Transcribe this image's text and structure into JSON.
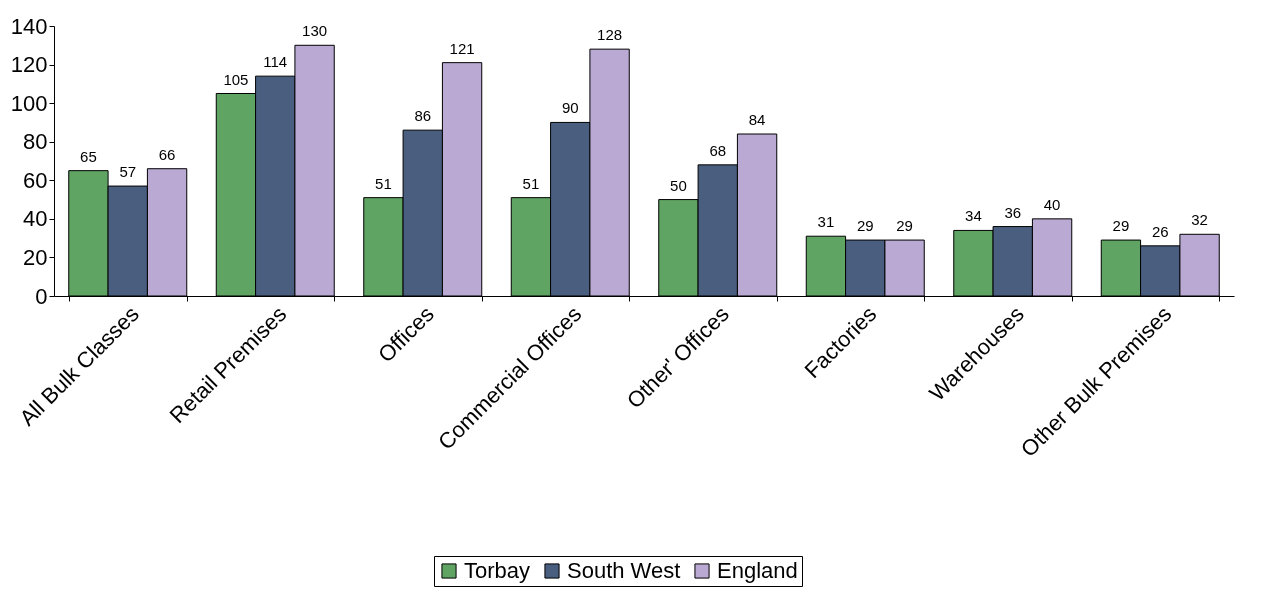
{
  "chart_data": {
    "type": "bar",
    "categories": [
      "All Bulk Classes",
      "Retail Premises",
      "Offices",
      "Commercial Offices",
      "Other' Offices",
      "Factories",
      "Warehouses",
      "Other Bulk Premises"
    ],
    "series": [
      {
        "name": "Torbay",
        "color": "#5fa463",
        "values": [
          65,
          105,
          51,
          51,
          50,
          31,
          34,
          29
        ]
      },
      {
        "name": "South West",
        "color": "#4a5f7f",
        "values": [
          57,
          114,
          86,
          90,
          68,
          29,
          36,
          26
        ]
      },
      {
        "name": "England",
        "color": "#b9a9d3",
        "values": [
          66,
          130,
          121,
          128,
          84,
          29,
          40,
          32
        ]
      }
    ],
    "ylim": [
      0,
      140
    ],
    "yticks": [
      0,
      20,
      40,
      60,
      80,
      100,
      120,
      140
    ],
    "grid": false,
    "legend": "bottom",
    "data_labels": true
  }
}
